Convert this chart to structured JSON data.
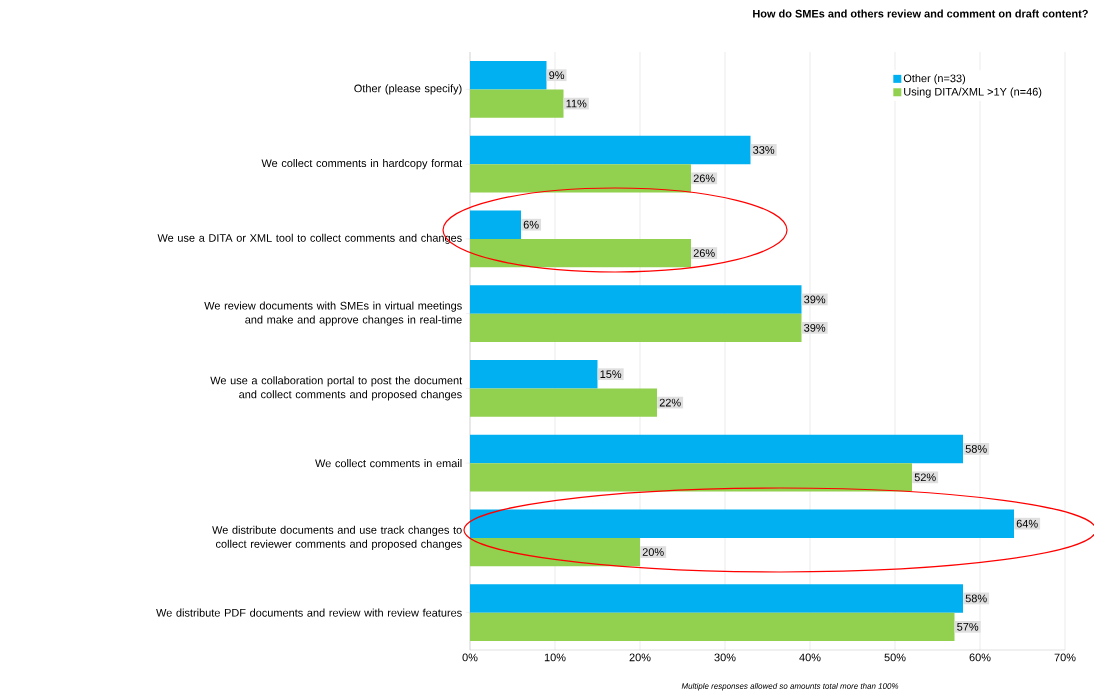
{
  "chart_data": {
    "type": "bar",
    "orientation": "horizontal",
    "title": "How do SMEs and others review and comment on draft content?",
    "categories": [
      "Other (please specify)",
      "We collect comments in hardcopy format",
      "We use a DITA or XML tool to collect comments and changes",
      "We review documents with SMEs in virtual meetings and make and approve changes in real-time",
      "We use a collaboration portal to post the document and collect comments and proposed changes",
      "We collect comments in email",
      "We distribute documents and use track changes to collect reviewer comments and proposed changes",
      "We distribute PDF documents and review with review features"
    ],
    "series": [
      {
        "name": "Other  (n=33)",
        "color": "#00b0f0",
        "values": [
          9,
          33,
          6,
          39,
          15,
          58,
          64,
          58
        ],
        "value_labels": [
          "9%",
          "33%",
          "6%",
          "39%",
          "15%",
          "58%",
          "64%",
          "58%"
        ]
      },
      {
        "name": "Using DITA/XML >1Y (n=46)",
        "color": "#92d050",
        "values": [
          11,
          26,
          26,
          39,
          22,
          52,
          20,
          57
        ],
        "value_labels": [
          "11%",
          "26%",
          "26%",
          "39%",
          "22%",
          "52%",
          "20%",
          "57%"
        ]
      }
    ],
    "xlim": [
      0,
      70
    ],
    "xticks": [
      {
        "value": 0,
        "label": "0%"
      },
      {
        "value": 10,
        "label": "10%"
      },
      {
        "value": 20,
        "label": "20%"
      },
      {
        "value": 30,
        "label": "30%"
      },
      {
        "value": 40,
        "label": "40%"
      },
      {
        "value": 50,
        "label": "50%"
      },
      {
        "value": 60,
        "label": "60%"
      },
      {
        "value": 70,
        "label": "70%"
      }
    ],
    "grid": "x",
    "legend": "top right",
    "annotations": [
      "Multiple responses allowed so amounts total more than 100%"
    ]
  }
}
